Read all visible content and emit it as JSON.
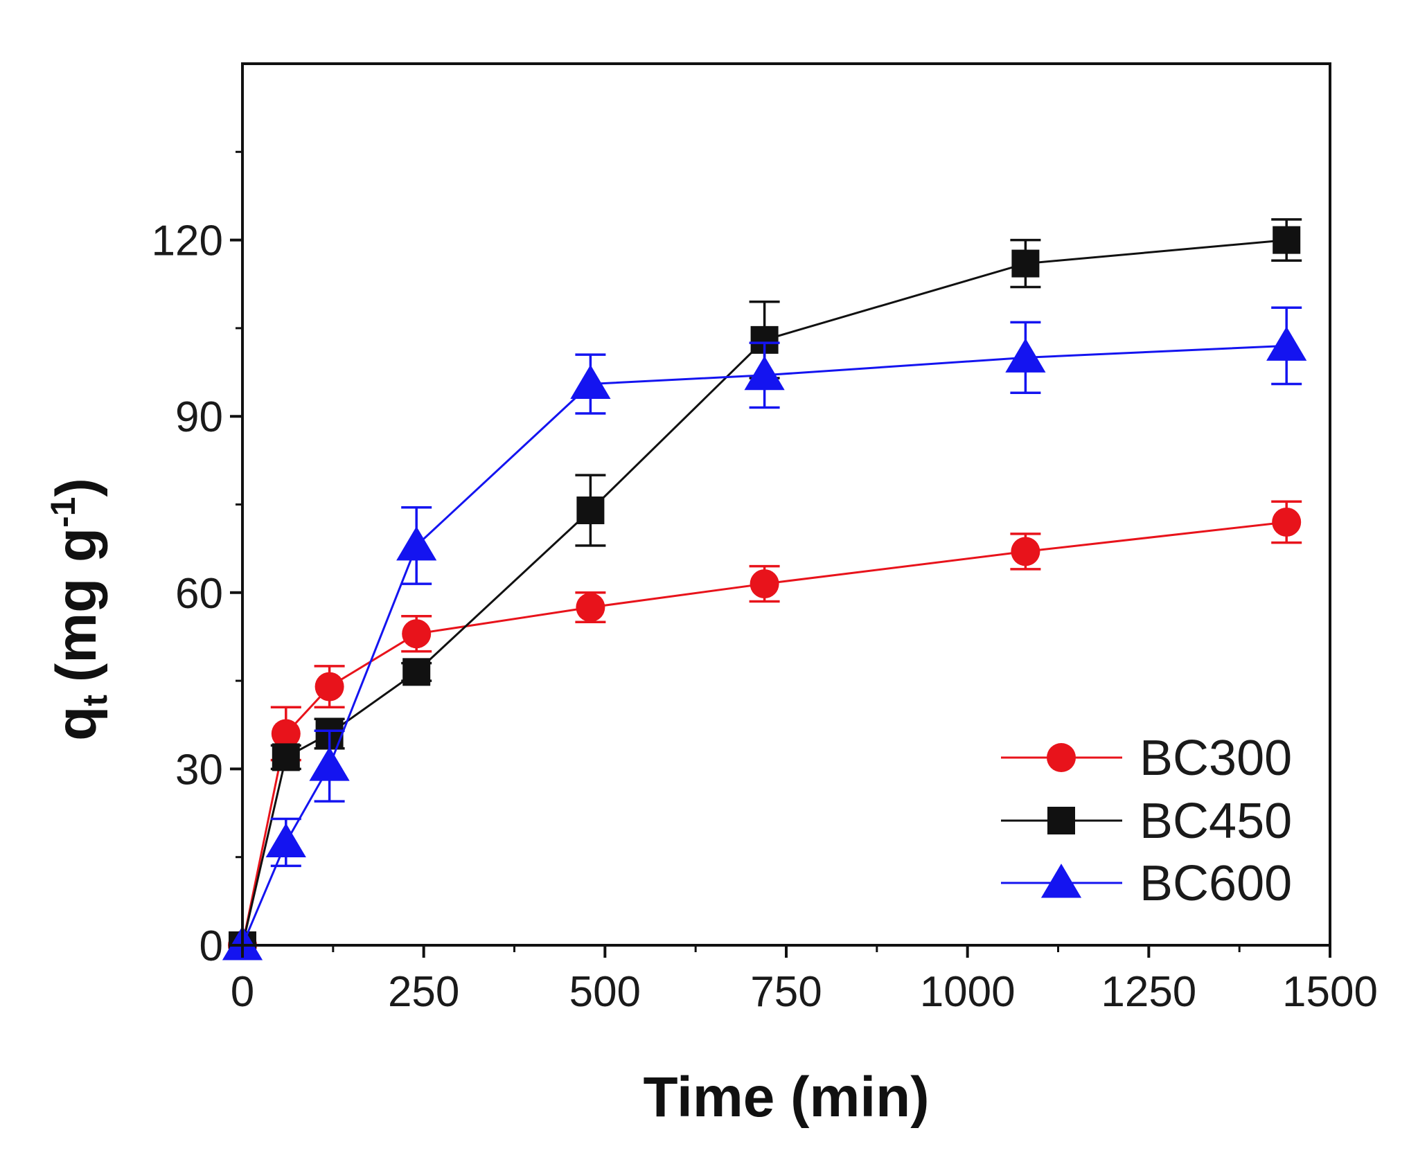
{
  "chart_data": {
    "type": "line",
    "title": "",
    "xlabel": "Time (min)",
    "ylabel_main": "q",
    "ylabel_sub": "t",
    "ylabel_unit": "(mg g",
    "ylabel_sup": "-1",
    "ylabel_close": ")",
    "xlim": [
      0,
      1500
    ],
    "ylim": [
      0,
      150
    ],
    "xticks": [
      0,
      250,
      500,
      750,
      1000,
      1250,
      1500
    ],
    "xtick_labels": [
      "0",
      "250",
      "500",
      "750",
      "1000",
      "1250",
      "1500"
    ],
    "yticks": [
      0,
      30,
      60,
      90,
      120
    ],
    "ytick_labels": [
      "0",
      "30",
      "60",
      "90",
      "120"
    ],
    "grid": false,
    "legend_position": "bottom-right",
    "series": [
      {
        "name": "BC300",
        "color": "#e8131b",
        "marker": "circle",
        "x": [
          0,
          60,
          120,
          240,
          480,
          720,
          1080,
          1440
        ],
        "y": [
          0,
          36,
          44,
          53,
          57.5,
          61.5,
          67,
          72
        ],
        "err": [
          0,
          4.5,
          3.5,
          3,
          2.5,
          3,
          3,
          3.5
        ]
      },
      {
        "name": "BC450",
        "color": "#111111",
        "marker": "square",
        "x": [
          0,
          60,
          120,
          240,
          480,
          720,
          1080,
          1440
        ],
        "y": [
          0,
          32,
          36,
          46.5,
          74,
          103,
          116,
          120
        ],
        "err": [
          0,
          2,
          2.5,
          1.5,
          6,
          6.5,
          4,
          3.5
        ]
      },
      {
        "name": "BC600",
        "color": "#1414f0",
        "marker": "triangle",
        "x": [
          0,
          60,
          120,
          240,
          480,
          720,
          1080,
          1440
        ],
        "y": [
          0,
          17.5,
          30.5,
          68,
          95.5,
          97,
          100,
          102
        ],
        "err": [
          0,
          4,
          6,
          6.5,
          5,
          5.5,
          6,
          6.5
        ]
      }
    ]
  }
}
